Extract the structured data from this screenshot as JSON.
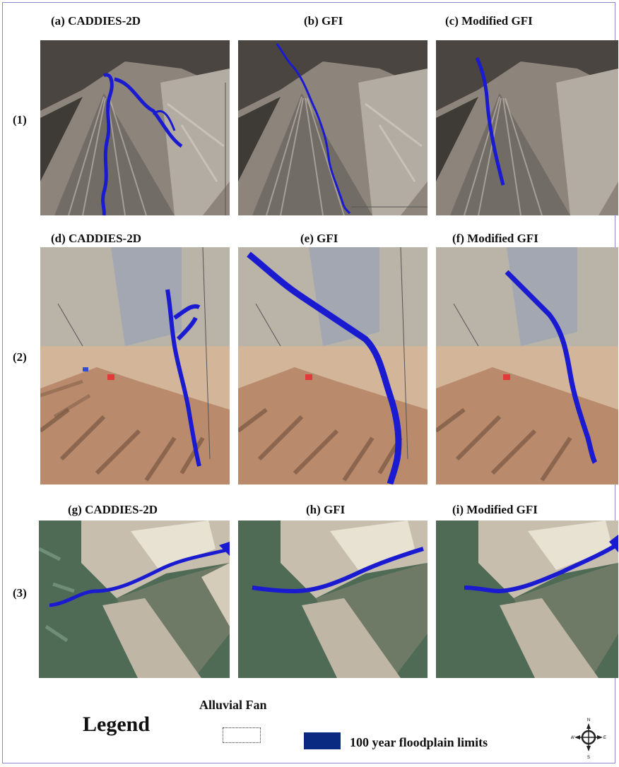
{
  "panels": [
    {
      "title": "(a) CADDIES-2D",
      "terrain": "fan"
    },
    {
      "title": "(b) GFI",
      "terrain": "fan"
    },
    {
      "title": "(c) Modified GFI",
      "terrain": "fan"
    },
    {
      "title": "(d) CADDIES-2D",
      "terrain": "urban"
    },
    {
      "title": "(e) GFI",
      "terrain": "urban"
    },
    {
      "title": "(f) Modified GFI",
      "terrain": "urban"
    },
    {
      "title": "(g) CADDIES-2D",
      "terrain": "valley"
    },
    {
      "title": "(h) GFI",
      "terrain": "valley"
    },
    {
      "title": "(i) Modified GFI",
      "terrain": "valley"
    }
  ],
  "rows": [
    "(1)",
    "(2)",
    "(3)"
  ],
  "legend": {
    "title": "Legend",
    "alluvial_fan_label": "Alluvial Fan",
    "floodplain_label": "100 year floodplain limits",
    "floodplain_color": "#0a2a82"
  },
  "compass": {
    "n": "N",
    "s": "S",
    "e": "E",
    "w": "W"
  },
  "colors": {
    "flood_line": "#1a1ad0",
    "frame": "#8a8ad0"
  }
}
